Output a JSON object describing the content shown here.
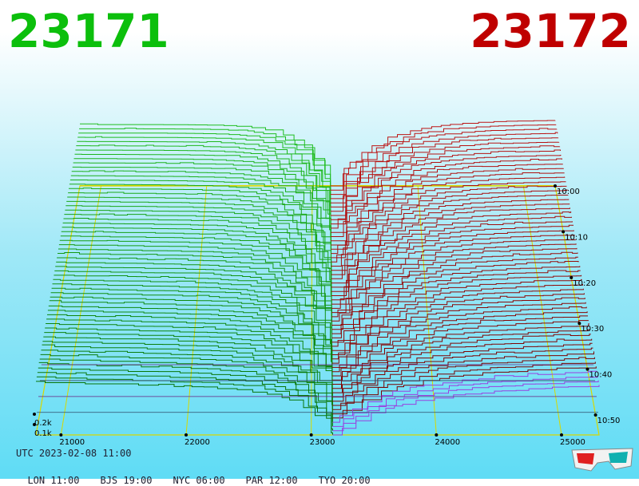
{
  "header": {
    "bid_price": "23171",
    "ask_price": "23172",
    "bid_color": "#0cbf0c",
    "ask_color": "#bf0000"
  },
  "chart_data": {
    "type": "3d-depth",
    "x_ticks": [
      "21000",
      "22000",
      "23000",
      "24000",
      "25000"
    ],
    "x_tick_values": [
      21000,
      22000,
      23000,
      24000,
      25000
    ],
    "depth_ticks": [
      "0.1k",
      "0.2k"
    ],
    "depth_tick_values": [
      100,
      200
    ],
    "time_ticks": [
      "10:00",
      "10:10",
      "10:20",
      "10:30",
      "10:40",
      "10:50"
    ],
    "mid_price": 23171.5,
    "bid_color": "#0a9a0a",
    "ask_color": "#9a0000",
    "grid_color": "#d8d800",
    "bid_side": {
      "x_range": [
        20800,
        23171
      ],
      "depth_at_far_end": 270
    },
    "ask_side": {
      "x_range": [
        23172,
        25300
      ],
      "depth_at_far_end": 290
    }
  },
  "footer": {
    "utc": "UTC 2023-02-08 11:00",
    "timezones": [
      "LON 11:00",
      "BJS 19:00",
      "NYC 06:00",
      "PAR 12:00",
      "TYO 20:00"
    ]
  },
  "icons": {
    "glasses": "3d-glasses-icon"
  }
}
